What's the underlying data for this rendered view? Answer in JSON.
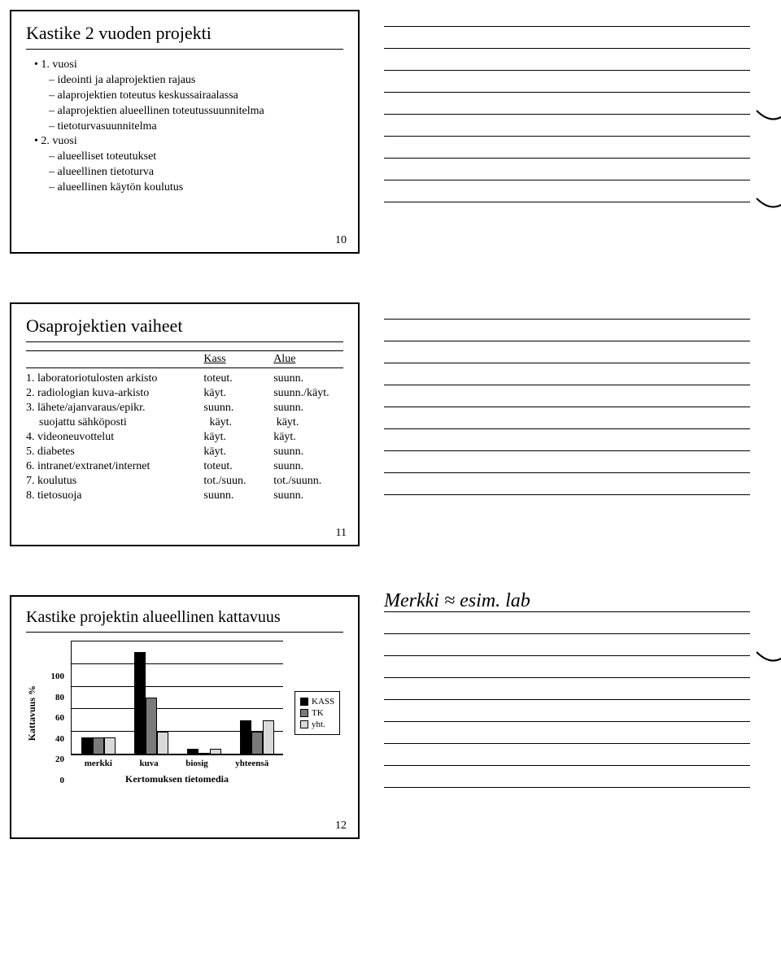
{
  "colors": {
    "kass": "#000000",
    "tk": "#7a7a7a",
    "yht": "#d9d9d9",
    "border": "#000000"
  },
  "slide1": {
    "title": "Kastike 2 vuoden projekti",
    "page": "10",
    "items": [
      {
        "level": 1,
        "text": "• 1. vuosi"
      },
      {
        "level": 2,
        "text": "– ideointi ja alaprojektien rajaus"
      },
      {
        "level": 2,
        "text": "– alaprojektien toteutus keskussairaalassa"
      },
      {
        "level": 2,
        "text": "– alaprojektien alueellinen toteutussuunnitelma"
      },
      {
        "level": 2,
        "text": "– tietoturvasuunnitelma"
      },
      {
        "level": 1,
        "text": "• 2. vuosi"
      },
      {
        "level": 2,
        "text": "– alueelliset toteutukset"
      },
      {
        "level": 2,
        "text": "– alueellinen tietoturva"
      },
      {
        "level": 2,
        "text": "– alueellinen käytön koulutus"
      }
    ]
  },
  "slide2": {
    "title": "Osaprojektien vaiheet",
    "page": "11",
    "header": {
      "blank": "",
      "c1": "Kass",
      "c2": "Alue"
    },
    "rows": [
      {
        "lab": "1. laboratoriotulosten arkisto",
        "c1": "toteut.",
        "c2": "suunn."
      },
      {
        "lab": "2. radiologian kuva-arkisto",
        "c1": "käyt.",
        "c2": "suunn./käyt."
      },
      {
        "lab": "3. lähete/ajanvaraus/epikr.",
        "c1": "suunn.",
        "c2": "suunn."
      },
      {
        "lab": "suojattu sähköposti",
        "c1": "käyt.",
        "c2": "käyt.",
        "sub": true
      },
      {
        "lab": "4. videoneuvottelut",
        "c1": "käyt.",
        "c2": "käyt."
      },
      {
        "lab": "5. diabetes",
        "c1": "käyt.",
        "c2": "suunn."
      },
      {
        "lab": "6. intranet/extranet/internet",
        "c1": "toteut.",
        "c2": "suunn."
      },
      {
        "lab": "7. koulutus",
        "c1": "tot./suun.",
        "c2": "tot./suunn."
      },
      {
        "lab": "8. tietosuoja",
        "c1": "suunn.",
        "c2": "suunn."
      }
    ]
  },
  "slide3": {
    "title": "Kastike projektin alueellinen kattavuus",
    "page": "12",
    "chart": {
      "type": "bar",
      "ylabel": "Kattavuus %",
      "ylim": [
        0,
        100
      ],
      "ytick_step": 20,
      "yticks": [
        "100",
        "80",
        "60",
        "40",
        "20",
        "0"
      ],
      "categories": [
        "merkki",
        "kuva",
        "biosig",
        "yhteensä"
      ],
      "series": [
        {
          "name": "KASS",
          "color": "#000000",
          "values": [
            15,
            90,
            5,
            30
          ]
        },
        {
          "name": "TK",
          "color": "#7a7a7a",
          "values": [
            15,
            50,
            0,
            20
          ]
        },
        {
          "name": "yht.",
          "color": "#d9d9d9",
          "values": [
            15,
            20,
            5,
            30
          ]
        }
      ],
      "xaxis_title": "Kertomuksen tietomedia",
      "legend": [
        "KASS",
        "TK",
        "yht."
      ]
    },
    "handwriting": "Merkki ≈ esim. lab"
  },
  "notes": {
    "row1_lines": 9,
    "row2_lines": 9,
    "row3_lines": 9,
    "curve_rows": [
      4,
      8
    ]
  }
}
